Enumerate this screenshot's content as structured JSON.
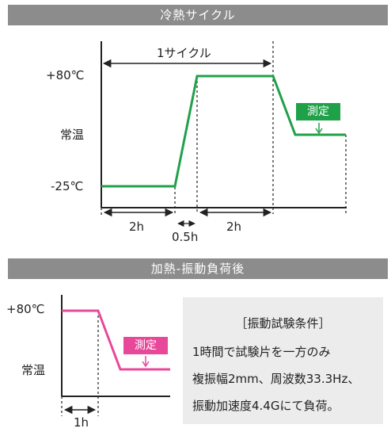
{
  "section1": {
    "title": "冷熱サイクル",
    "cycle_label": "1サイクル",
    "y_labels": {
      "high": "+80℃",
      "room": "常温",
      "low": "-25℃"
    },
    "measure_badge": "測定",
    "durations": [
      "2h",
      "0.5h",
      "2h"
    ]
  },
  "section2": {
    "title": "加熱-振動負荷後",
    "y_labels": {
      "high": "+80℃",
      "room": "常温"
    },
    "measure_badge": "測定",
    "duration": "1h",
    "note": {
      "heading": "［振動試験条件］",
      "lines": [
        "1時間で試験片を一方のみ",
        "複振幅2mm、周波数33.3Hz、",
        "振動加速度4.4Gにて負荷。"
      ]
    }
  },
  "colors": {
    "green": "#1fa14a",
    "pink": "#e8489a",
    "header_bg": "#8c8c8c",
    "note_bg": "#ececec"
  }
}
